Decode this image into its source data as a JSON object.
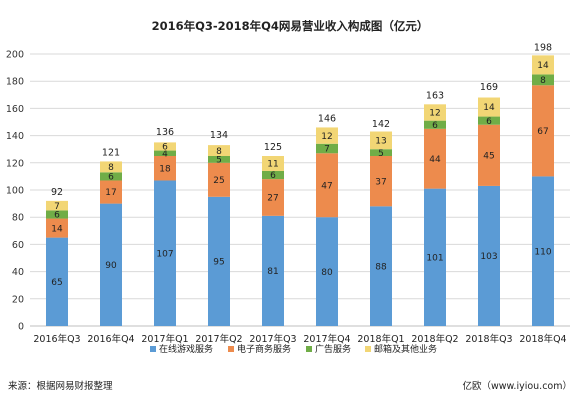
{
  "title": "2016年Q3-2018年Q4网易营业收入构成图（亿元）",
  "source": "来源：根据网易财报整理",
  "watermark": "亿欧（www.iyiou.com）",
  "chart_data": {
    "type": "bar",
    "stacked": true,
    "title": "2016年Q3-2018年Q4网易营业收入构成图（亿元）",
    "categories": [
      "2016年Q3",
      "2016年Q4",
      "2017年Q1",
      "2017年Q2",
      "2017年Q3",
      "2017年Q4",
      "2018年Q1",
      "2018年Q2",
      "2018年Q3",
      "2018年Q4"
    ],
    "series": [
      {
        "name": "在线游戏服务",
        "color": "#5b9bd5",
        "values": [
          65,
          90,
          107,
          95,
          81,
          80,
          88,
          101,
          103,
          110
        ]
      },
      {
        "name": "电子商务服务",
        "color": "#ed8b4d",
        "values": [
          14,
          17,
          18,
          25,
          27,
          47,
          37,
          44,
          45,
          67
        ]
      },
      {
        "name": "广告服务",
        "color": "#70ad47",
        "values": [
          6,
          6,
          4,
          5,
          6,
          7,
          5,
          6,
          6,
          8
        ]
      },
      {
        "name": "邮箱及其他业务",
        "color": "#f2d675",
        "values": [
          7,
          8,
          6,
          8,
          11,
          12,
          13,
          12,
          14,
          14
        ]
      }
    ],
    "totals": [
      92,
      121,
      136,
      134,
      125,
      146,
      142,
      163,
      169,
      198
    ],
    "ylim": [
      0,
      200
    ],
    "yticks": [
      0,
      20,
      40,
      60,
      80,
      100,
      120,
      140,
      160,
      180,
      200
    ],
    "grid": true,
    "legend_position": "bottom"
  }
}
